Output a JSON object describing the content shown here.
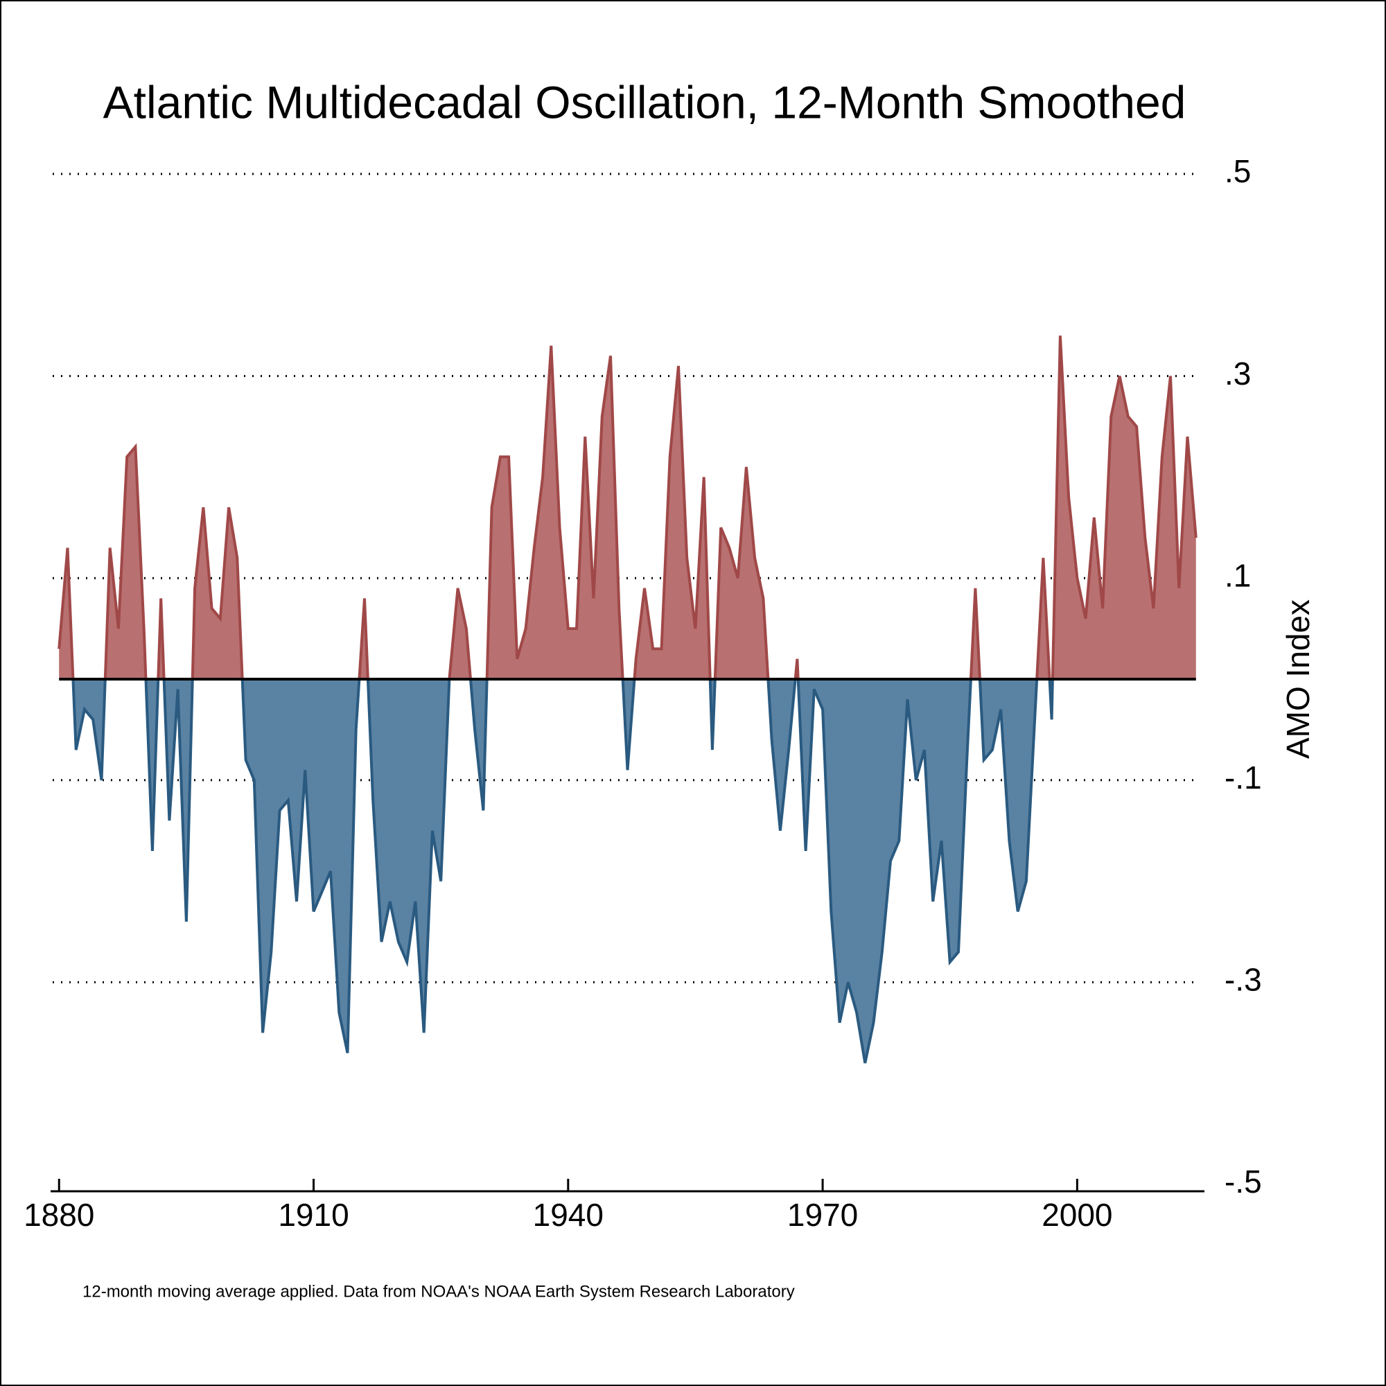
{
  "chart_data": {
    "type": "area",
    "title": "Atlantic Multidecadal Oscillation, 12-Month Smoothed",
    "ylabel": "AMO Index",
    "note": "12-month moving average applied. Data from NOAA's NOAA Earth System Research Laboratory",
    "x": [
      1880,
      1881,
      1882,
      1883,
      1884,
      1885,
      1886,
      1887,
      1888,
      1889,
      1890,
      1891,
      1892,
      1893,
      1894,
      1895,
      1896,
      1897,
      1898,
      1899,
      1900,
      1901,
      1902,
      1903,
      1904,
      1905,
      1906,
      1907,
      1908,
      1909,
      1910,
      1911,
      1912,
      1913,
      1914,
      1915,
      1916,
      1917,
      1918,
      1919,
      1920,
      1921,
      1922,
      1923,
      1924,
      1925,
      1926,
      1927,
      1928,
      1929,
      1930,
      1931,
      1932,
      1933,
      1934,
      1935,
      1936,
      1937,
      1938,
      1939,
      1940,
      1941,
      1942,
      1943,
      1944,
      1945,
      1946,
      1947,
      1948,
      1949,
      1950,
      1951,
      1952,
      1953,
      1954,
      1955,
      1956,
      1957,
      1958,
      1959,
      1960,
      1961,
      1962,
      1963,
      1964,
      1965,
      1966,
      1967,
      1968,
      1969,
      1970,
      1971,
      1972,
      1973,
      1974,
      1975,
      1976,
      1977,
      1978,
      1979,
      1980,
      1981,
      1982,
      1983,
      1984,
      1985,
      1986,
      1987,
      1988,
      1989,
      1990,
      1991,
      1992,
      1993,
      1994,
      1995,
      1996,
      1997,
      1998,
      1999,
      2000,
      2001,
      2002,
      2003,
      2004,
      2005,
      2006,
      2007,
      2008,
      2009,
      2010,
      2011,
      2012,
      2013,
      2014
    ],
    "series": [
      {
        "name": "AMO Index",
        "color_positive": "#b87070",
        "line_positive": "#a04848",
        "color_negative": "#5a82a3",
        "line_negative": "#2a5a80",
        "values": [
          0.03,
          0.13,
          -0.07,
          -0.03,
          -0.04,
          -0.1,
          0.13,
          0.05,
          0.22,
          0.23,
          0.05,
          -0.17,
          0.08,
          -0.14,
          -0.01,
          -0.24,
          0.09,
          0.17,
          0.07,
          0.06,
          0.17,
          0.12,
          -0.08,
          -0.1,
          -0.35,
          -0.27,
          -0.13,
          -0.12,
          -0.22,
          -0.09,
          -0.23,
          -0.21,
          -0.19,
          -0.33,
          -0.37,
          -0.05,
          0.08,
          -0.12,
          -0.26,
          -0.22,
          -0.26,
          -0.28,
          -0.22,
          -0.35,
          -0.15,
          -0.2,
          0.0,
          0.09,
          0.05,
          -0.05,
          -0.13,
          0.17,
          0.22,
          0.22,
          0.02,
          0.05,
          0.13,
          0.2,
          0.33,
          0.15,
          0.05,
          0.05,
          0.24,
          0.08,
          0.26,
          0.32,
          0.07,
          -0.09,
          0.02,
          0.09,
          0.03,
          0.03,
          0.22,
          0.31,
          0.12,
          0.05,
          0.2,
          -0.07,
          0.15,
          0.13,
          0.1,
          0.21,
          0.12,
          0.08,
          -0.06,
          -0.15,
          -0.07,
          0.02,
          -0.17,
          -0.01,
          -0.03,
          -0.23,
          -0.34,
          -0.3,
          -0.33,
          -0.38,
          -0.34,
          -0.27,
          -0.18,
          -0.16,
          -0.02,
          -0.1,
          -0.07,
          -0.22,
          -0.16,
          -0.28,
          -0.27,
          -0.08,
          0.09,
          -0.08,
          -0.07,
          -0.03,
          -0.16,
          -0.23,
          -0.2,
          -0.04,
          0.12,
          -0.04,
          0.34,
          0.18,
          0.1,
          0.06,
          0.16,
          0.07,
          0.26,
          0.3,
          0.26,
          0.25,
          0.14,
          0.07,
          0.22,
          0.3,
          0.09,
          0.24,
          0.14
        ]
      }
    ],
    "xlim": [
      1879,
      2015
    ],
    "xticks": [
      1880,
      1910,
      1940,
      1970,
      2000
    ],
    "ylim": [
      -0.5,
      0.5
    ],
    "yticks": [
      {
        "value": 0.5,
        "label": ".5"
      },
      {
        "value": 0.3,
        "label": ".3"
      },
      {
        "value": 0.1,
        "label": ".1"
      },
      {
        "value": -0.1,
        "label": "-.1"
      },
      {
        "value": -0.3,
        "label": "-.3"
      },
      {
        "value": -0.5,
        "label": "-.5"
      }
    ],
    "grid": true
  }
}
